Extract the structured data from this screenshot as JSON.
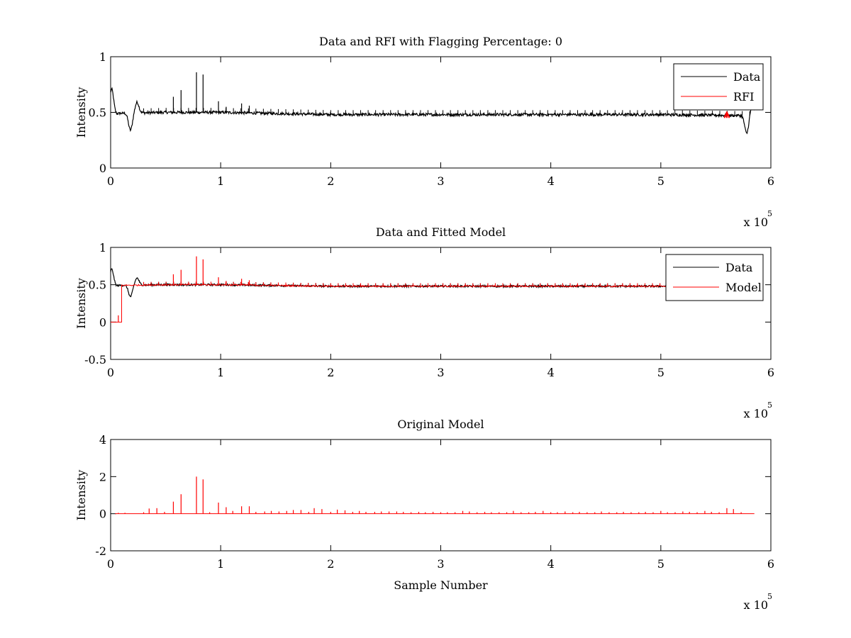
{
  "colors": {
    "data": "#000000",
    "rfi": "#ff0000",
    "model": "#ff0000",
    "axes": "#000000"
  },
  "chart_data": [
    {
      "type": "line",
      "title": "Data and RFI with Flagging Percentage: 0",
      "xlabel": "",
      "ylabel": "Intensity",
      "x_exponent_label": "x 10",
      "x_exponent": "5",
      "xlim": [
        0,
        6
      ],
      "ylim": [
        0,
        1
      ],
      "xticks": [
        "0",
        "1",
        "2",
        "3",
        "4",
        "5",
        "6"
      ],
      "yticks": [
        "0",
        "0.5",
        "1"
      ],
      "legend": [
        "Data",
        "RFI"
      ],
      "legend_position": "top-right",
      "series": [
        {
          "name": "Data",
          "kind": "data",
          "color": "#000000",
          "baseline": [
            [
              0.0,
              0.49
            ],
            [
              0.5,
              0.5
            ],
            [
              1.0,
              0.5
            ],
            [
              1.5,
              0.49
            ],
            [
              2.0,
              0.48
            ],
            [
              3.0,
              0.48
            ],
            [
              4.0,
              0.48
            ],
            [
              5.0,
              0.48
            ],
            [
              5.85,
              0.47
            ]
          ],
          "bumps": [
            [
              0.01,
              0.71
            ],
            [
              0.04,
              0.48
            ],
            [
              0.18,
              0.34
            ],
            [
              0.24,
              0.59
            ],
            [
              5.78,
              0.31
            ],
            [
              5.83,
              0.55
            ]
          ],
          "spikes": [
            [
              0.57,
              0.64
            ],
            [
              0.64,
              0.7
            ],
            [
              0.78,
              0.86
            ],
            [
              0.84,
              0.84
            ],
            [
              0.98,
              0.6
            ],
            [
              1.05,
              0.55
            ],
            [
              1.19,
              0.58
            ],
            [
              1.26,
              0.56
            ]
          ]
        },
        {
          "name": "RFI",
          "kind": "rfi",
          "color": "#ff0000",
          "points": [
            [
              5.58,
              0.46
            ],
            [
              5.6,
              0.5
            ],
            [
              5.62,
              0.46
            ]
          ]
        }
      ]
    },
    {
      "type": "line",
      "title": "Data and Fitted Model",
      "xlabel": "",
      "ylabel": "Intensity",
      "x_exponent_label": "x 10",
      "x_exponent": "5",
      "xlim": [
        0,
        6
      ],
      "ylim": [
        -0.5,
        1
      ],
      "xticks": [
        "0",
        "1",
        "2",
        "3",
        "4",
        "5",
        "6"
      ],
      "yticks": [
        "-0.5",
        "0",
        "0.5",
        "1"
      ],
      "legend": [
        "Data",
        "Model"
      ],
      "legend_position": "top-right",
      "series": [
        {
          "name": "Data",
          "kind": "data",
          "color": "#000000",
          "baseline": [
            [
              0.0,
              0.49
            ],
            [
              0.5,
              0.5
            ],
            [
              1.0,
              0.5
            ],
            [
              1.5,
              0.49
            ],
            [
              2.0,
              0.48
            ],
            [
              3.0,
              0.48
            ],
            [
              4.0,
              0.48
            ],
            [
              5.0,
              0.48
            ],
            [
              5.85,
              0.47
            ]
          ],
          "bumps": [
            [
              0.01,
              0.71
            ],
            [
              0.04,
              0.48
            ],
            [
              0.18,
              0.34
            ],
            [
              0.24,
              0.59
            ]
          ],
          "spikes": []
        },
        {
          "name": "Model",
          "kind": "model",
          "color": "#ff0000",
          "step": [
            [
              0.0,
              0.0
            ],
            [
              0.1,
              0.0
            ],
            [
              0.1,
              0.5
            ]
          ],
          "spikes": [
            [
              0.07,
              0.09
            ],
            [
              0.57,
              0.64
            ],
            [
              0.64,
              0.7
            ],
            [
              0.78,
              0.88
            ],
            [
              0.84,
              0.84
            ],
            [
              0.98,
              0.6
            ],
            [
              1.05,
              0.55
            ],
            [
              1.19,
              0.58
            ],
            [
              1.26,
              0.56
            ]
          ]
        }
      ]
    },
    {
      "type": "line",
      "title": "Original Model",
      "xlabel": "Sample Number",
      "ylabel": "Intensity",
      "x_exponent_label": "x 10",
      "x_exponent": "5",
      "xlim": [
        0,
        6
      ],
      "ylim": [
        -2,
        4
      ],
      "xticks": [
        "0",
        "1",
        "2",
        "3",
        "4",
        "5",
        "6"
      ],
      "yticks": [
        "-2",
        "0",
        "2",
        "4"
      ],
      "legend": [],
      "series": [
        {
          "name": "",
          "kind": "spikes",
          "color": "#ff0000",
          "baseline_value": 0,
          "x_range": [
            0.04,
            5.85
          ],
          "spikes": [
            [
              0.07,
              0.05
            ],
            [
              0.13,
              0.05
            ],
            [
              0.3,
              0.08
            ],
            [
              0.35,
              0.28
            ],
            [
              0.42,
              0.3
            ],
            [
              0.49,
              0.1
            ],
            [
              0.57,
              0.65
            ],
            [
              0.64,
              1.05
            ],
            [
              0.78,
              2.0
            ],
            [
              0.84,
              1.85
            ],
            [
              0.9,
              0.08
            ],
            [
              0.98,
              0.6
            ],
            [
              1.05,
              0.35
            ],
            [
              1.11,
              0.15
            ],
            [
              1.19,
              0.4
            ],
            [
              1.26,
              0.4
            ],
            [
              1.32,
              0.1
            ],
            [
              1.4,
              0.12
            ],
            [
              1.46,
              0.15
            ],
            [
              1.53,
              0.12
            ],
            [
              1.6,
              0.15
            ],
            [
              1.66,
              0.2
            ],
            [
              1.73,
              0.2
            ],
            [
              1.8,
              0.1
            ],
            [
              1.85,
              0.3
            ],
            [
              1.92,
              0.25
            ],
            [
              2.0,
              0.1
            ],
            [
              2.06,
              0.22
            ],
            [
              2.13,
              0.18
            ],
            [
              2.2,
              0.1
            ],
            [
              2.26,
              0.15
            ],
            [
              2.32,
              0.1
            ],
            [
              2.4,
              0.1
            ],
            [
              2.46,
              0.12
            ],
            [
              2.53,
              0.12
            ],
            [
              2.6,
              0.12
            ],
            [
              2.66,
              0.1
            ],
            [
              2.73,
              0.08
            ],
            [
              2.8,
              0.1
            ],
            [
              2.86,
              0.08
            ],
            [
              2.93,
              0.1
            ],
            [
              3.0,
              0.08
            ],
            [
              3.06,
              0.08
            ],
            [
              3.13,
              0.08
            ],
            [
              3.2,
              0.15
            ],
            [
              3.26,
              0.12
            ],
            [
              3.33,
              0.08
            ],
            [
              3.4,
              0.1
            ],
            [
              3.46,
              0.08
            ],
            [
              3.53,
              0.08
            ],
            [
              3.6,
              0.08
            ],
            [
              3.66,
              0.15
            ],
            [
              3.73,
              0.08
            ],
            [
              3.8,
              0.08
            ],
            [
              3.86,
              0.1
            ],
            [
              3.93,
              0.15
            ],
            [
              4.0,
              0.08
            ],
            [
              4.06,
              0.08
            ],
            [
              4.13,
              0.12
            ],
            [
              4.2,
              0.08
            ],
            [
              4.26,
              0.1
            ],
            [
              4.33,
              0.08
            ],
            [
              4.4,
              0.08
            ],
            [
              4.46,
              0.12
            ],
            [
              4.53,
              0.08
            ],
            [
              4.6,
              0.08
            ],
            [
              4.66,
              0.1
            ],
            [
              4.73,
              0.08
            ],
            [
              4.8,
              0.08
            ],
            [
              4.86,
              0.1
            ],
            [
              4.93,
              0.08
            ],
            [
              5.0,
              0.15
            ],
            [
              5.06,
              0.08
            ],
            [
              5.13,
              0.08
            ],
            [
              5.2,
              0.12
            ],
            [
              5.26,
              0.1
            ],
            [
              5.33,
              0.08
            ],
            [
              5.4,
              0.15
            ],
            [
              5.46,
              0.1
            ],
            [
              5.53,
              0.08
            ],
            [
              5.6,
              0.3
            ],
            [
              5.66,
              0.25
            ],
            [
              5.73,
              0.08
            ]
          ]
        }
      ]
    }
  ]
}
